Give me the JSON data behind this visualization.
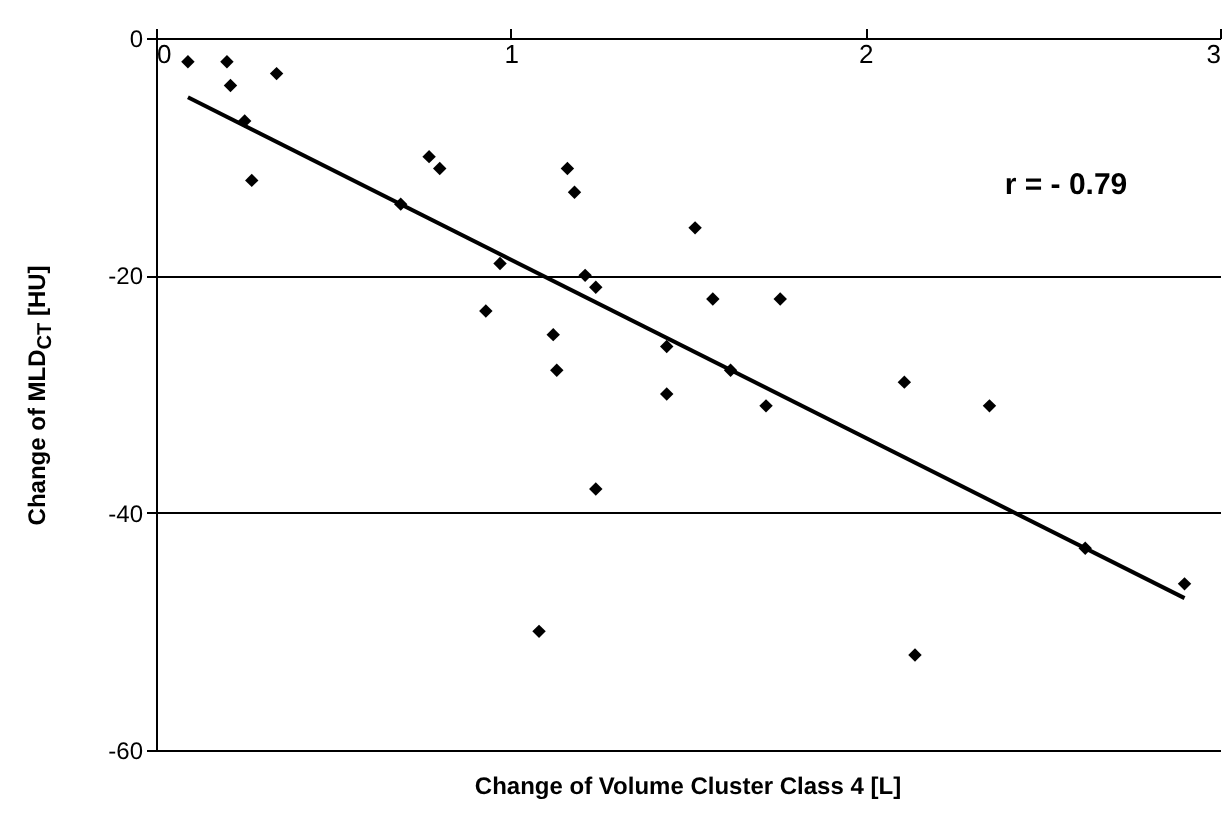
{
  "chart_data": {
    "type": "scatter",
    "xlabel": "Change of Volume Cluster Class 4  [L]",
    "ylabel": "Change of MLD$_{CT}$  [HU]",
    "annotations": [
      "r = - 0.79"
    ],
    "xlim": [
      0,
      3
    ],
    "xticks": [
      0,
      1,
      2,
      3
    ],
    "ylim": [
      -60,
      0
    ],
    "yticks": [
      -60,
      -40,
      -20,
      0
    ],
    "grid": "y",
    "series": [
      {
        "color": "#000000",
        "marker": "diamond",
        "x": [
          0.09,
          0.2,
          0.21,
          0.25,
          0.27,
          0.34,
          0.69,
          0.77,
          0.8,
          0.97,
          0.93,
          1.12,
          1.13,
          1.16,
          1.18,
          1.21,
          1.24,
          1.44,
          1.44,
          1.24,
          1.08,
          1.52,
          1.57,
          1.76,
          1.62,
          1.72,
          2.11,
          2.35,
          2.14,
          2.62,
          2.9
        ],
        "values": [
          -2,
          -2,
          -4,
          -7,
          -12,
          -3,
          -14,
          -10,
          -11,
          -19,
          -23,
          -25,
          -28,
          -11,
          -13,
          -20,
          -21,
          -26,
          -30,
          -38,
          -50,
          -16,
          -22,
          -22,
          -28,
          -31,
          -29,
          -31,
          -52,
          -43,
          -46
        ]
      },
      {
        "type": "line",
        "color": "#000000",
        "x": [
          0.09,
          2.9
        ],
        "values": [
          -5,
          -47.2
        ],
        "line_style": "solid",
        "marker": "none"
      }
    ]
  }
}
